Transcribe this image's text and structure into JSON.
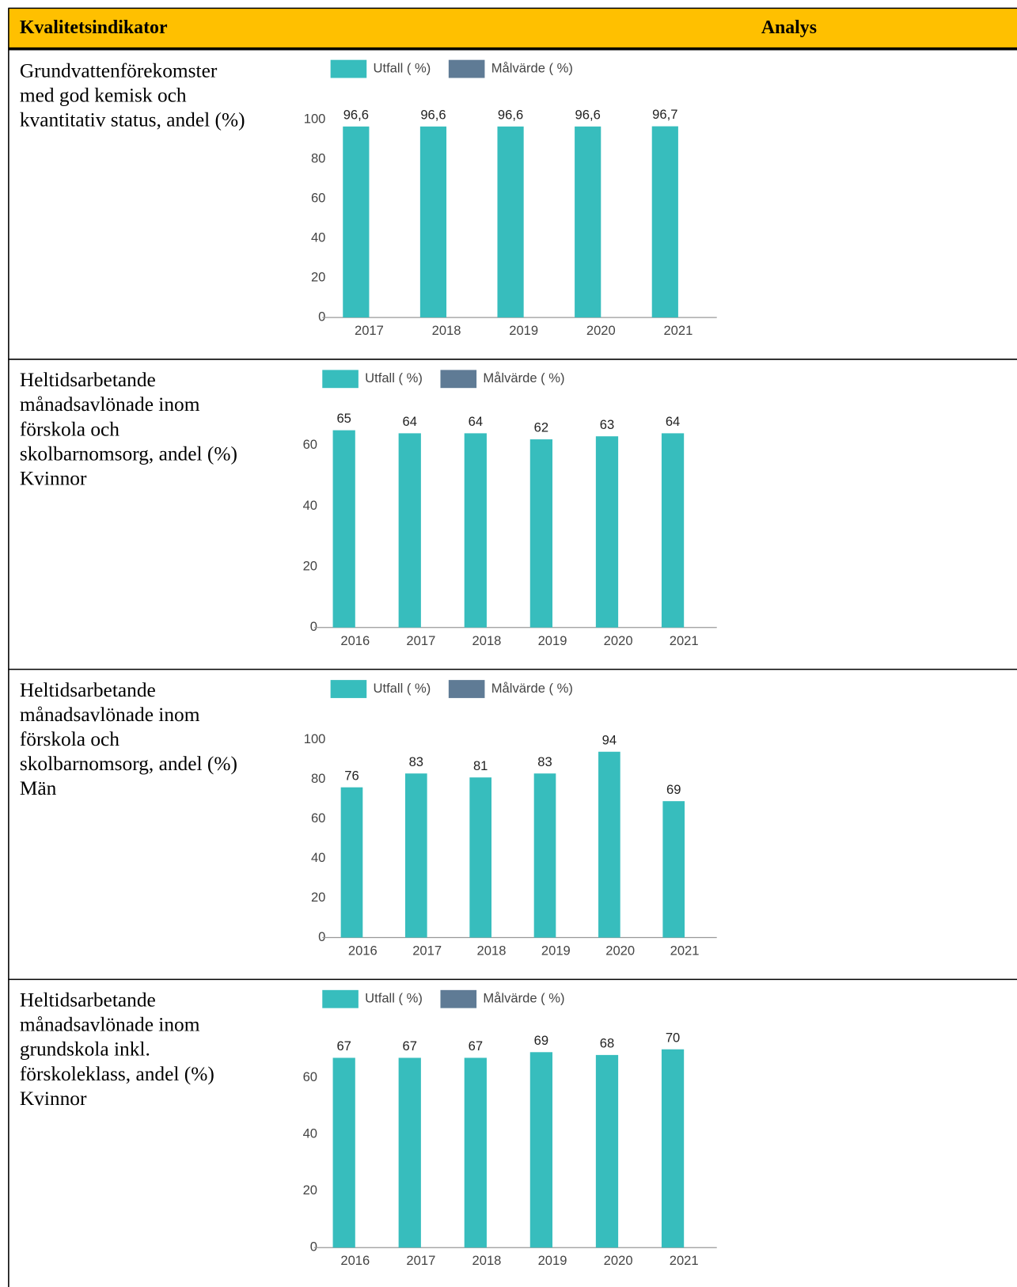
{
  "header": {
    "columns": [
      "Kvalitetsindikator",
      "Analys"
    ]
  },
  "rows": [
    {
      "label": [
        "Grundvattenförekomster",
        "med god kemisk och",
        "kvantitativ status, andel (%)"
      ],
      "chart": {
        "type": "bar",
        "categories": [
          "2017",
          "2018",
          "2019",
          "2020",
          "2021"
        ],
        "series": [
          {
            "name": "Utfall ( %)",
            "color": "#37bdbd",
            "values": [
              96.6,
              96.6,
              96.6,
              96.6,
              96.7
            ],
            "value_labels": [
              "96,6",
              "96,6",
              "96,6",
              "96,6",
              "96,7"
            ]
          },
          {
            "name": "Målvärde ( %)",
            "color": "#5f7b95",
            "values": [
              null,
              null,
              null,
              null,
              null
            ]
          }
        ],
        "ylim": [
          0,
          100
        ],
        "yticks": [
          0,
          20,
          40,
          60,
          80,
          100
        ]
      }
    },
    {
      "label": [
        "Heltidsarbetande",
        "månadsavlönade inom",
        "förskola och",
        "skolbarnomsorg, andel (%)",
        "Kvinnor"
      ],
      "chart": {
        "type": "bar",
        "categories": [
          "2016",
          "2017",
          "2018",
          "2019",
          "2020",
          "2021"
        ],
        "series": [
          {
            "name": "Utfall ( %)",
            "color": "#37bdbd",
            "values": [
              65,
              64,
              64,
              62,
              63,
              64
            ]
          },
          {
            "name": "Målvärde ( %)",
            "color": "#5f7b95",
            "values": [
              null,
              null,
              null,
              null,
              null,
              null
            ]
          }
        ],
        "ylim": [
          0,
          70
        ],
        "yticks": [
          0,
          20,
          40,
          60
        ]
      }
    },
    {
      "label": [
        "Heltidsarbetande",
        "månadsavlönade inom",
        "förskola och",
        "skolbarnomsorg, andel (%)",
        "Män"
      ],
      "chart": {
        "type": "bar",
        "categories": [
          "2016",
          "2017",
          "2018",
          "2019",
          "2020",
          "2021"
        ],
        "series": [
          {
            "name": "Utfall ( %)",
            "color": "#37bdbd",
            "values": [
              76,
              83,
              81,
              83,
              94,
              69
            ]
          },
          {
            "name": "Målvärde ( %)",
            "color": "#5f7b95",
            "values": [
              null,
              null,
              null,
              null,
              null,
              null
            ]
          }
        ],
        "ylim": [
          0,
          100
        ],
        "yticks": [
          0,
          20,
          40,
          60,
          80,
          100
        ]
      }
    },
    {
      "label": [
        "Heltidsarbetande",
        "månadsavlönade inom",
        "grundskola inkl.",
        "förskoleklass, andel (%)",
        "Kvinnor"
      ],
      "chart": {
        "type": "bar",
        "categories": [
          "2016",
          "2017",
          "2018",
          "2019",
          "2020",
          "2021"
        ],
        "series": [
          {
            "name": "Utfall ( %)",
            "color": "#37bdbd",
            "values": [
              67,
              67,
              67,
              69,
              68,
              70
            ]
          },
          {
            "name": "Målvärde ( %)",
            "color": "#5f7b95",
            "values": [
              null,
              null,
              null,
              null,
              null,
              null
            ]
          }
        ],
        "ylim": [
          0,
          75
        ],
        "yticks": [
          0,
          20,
          40,
          60
        ]
      }
    }
  ]
}
